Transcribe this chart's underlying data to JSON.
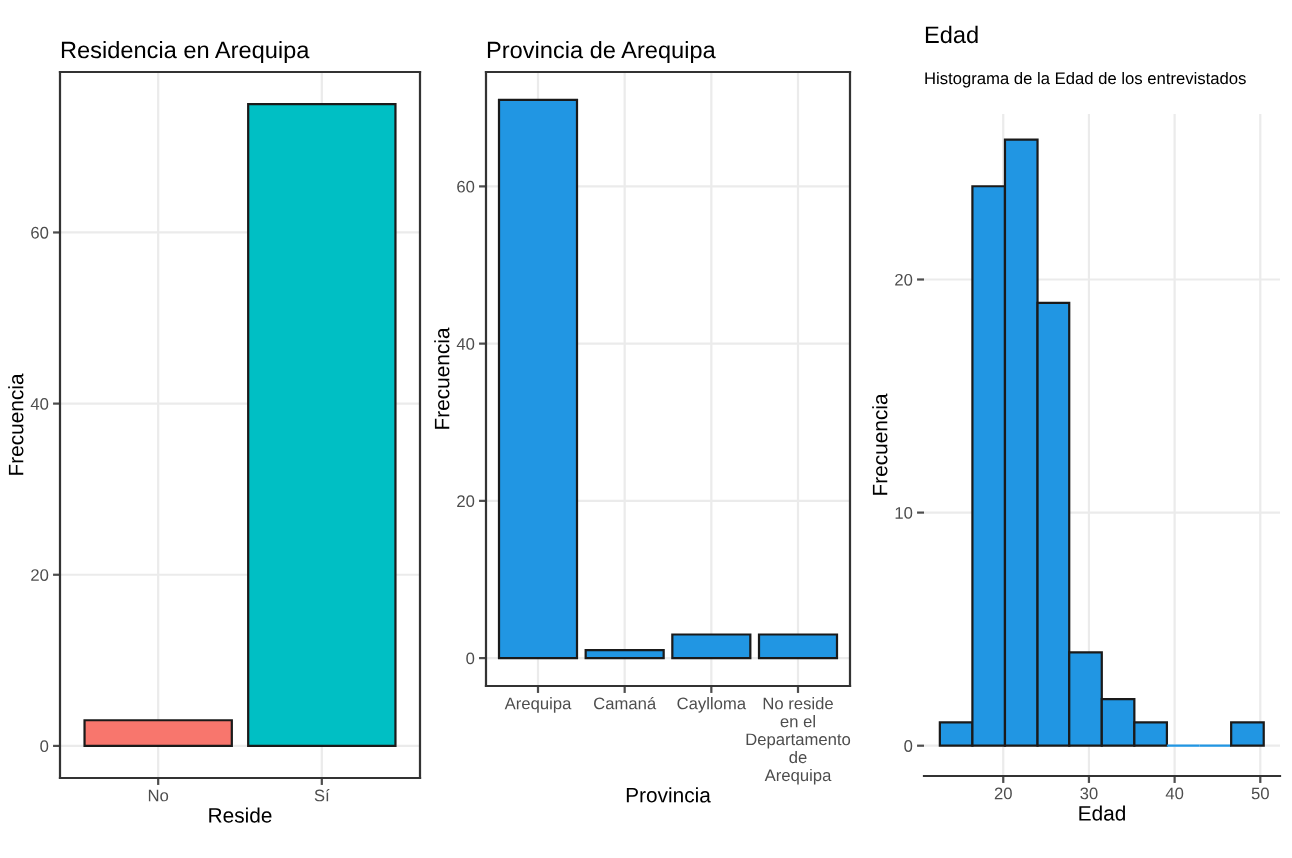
{
  "chart_data": [
    {
      "type": "bar",
      "title": "Residencia en Arequipa",
      "xlabel": "Reside",
      "ylabel": "Frecuencia",
      "categories": [
        "No",
        "Sí"
      ],
      "values": [
        3,
        75
      ],
      "colors": [
        "#f8766d",
        "#00bfc4"
      ],
      "ylim": [
        -3.75,
        78.75
      ],
      "yticks": [
        0,
        20,
        40,
        60
      ],
      "grid": true
    },
    {
      "type": "bar",
      "title": "Provincia de Arequipa",
      "xlabel": "Provincia",
      "ylabel": "Frecuencia",
      "categories": [
        "Arequipa",
        "Camaná",
        "Caylloma",
        "No reside\nen el\nDepartamento\nde\nArequipa"
      ],
      "values": [
        71,
        1,
        3,
        3
      ],
      "color": "#2196e3",
      "ylim": [
        -3.55,
        74.55
      ],
      "yticks": [
        0,
        20,
        40,
        60
      ],
      "grid": true
    },
    {
      "type": "histogram",
      "title": "Edad",
      "subtitle": "Histograma de la Edad de los entrevistados",
      "xlabel": "Edad",
      "ylabel": "Frecuencia",
      "bins": [
        12.6,
        16.4,
        20.2,
        24.0,
        27.7,
        31.5,
        35.3,
        39.1,
        42.9,
        46.6,
        50.4
      ],
      "values": [
        1,
        24,
        26,
        19,
        4,
        2,
        1,
        0,
        0,
        1
      ],
      "color": "#2196e3",
      "xlim": [
        10.75,
        52.3
      ],
      "xticks": [
        20,
        30,
        40,
        50
      ],
      "ylim": [
        -1.3,
        27.1
      ],
      "yticks": [
        0,
        10,
        20
      ],
      "grid": true
    }
  ]
}
